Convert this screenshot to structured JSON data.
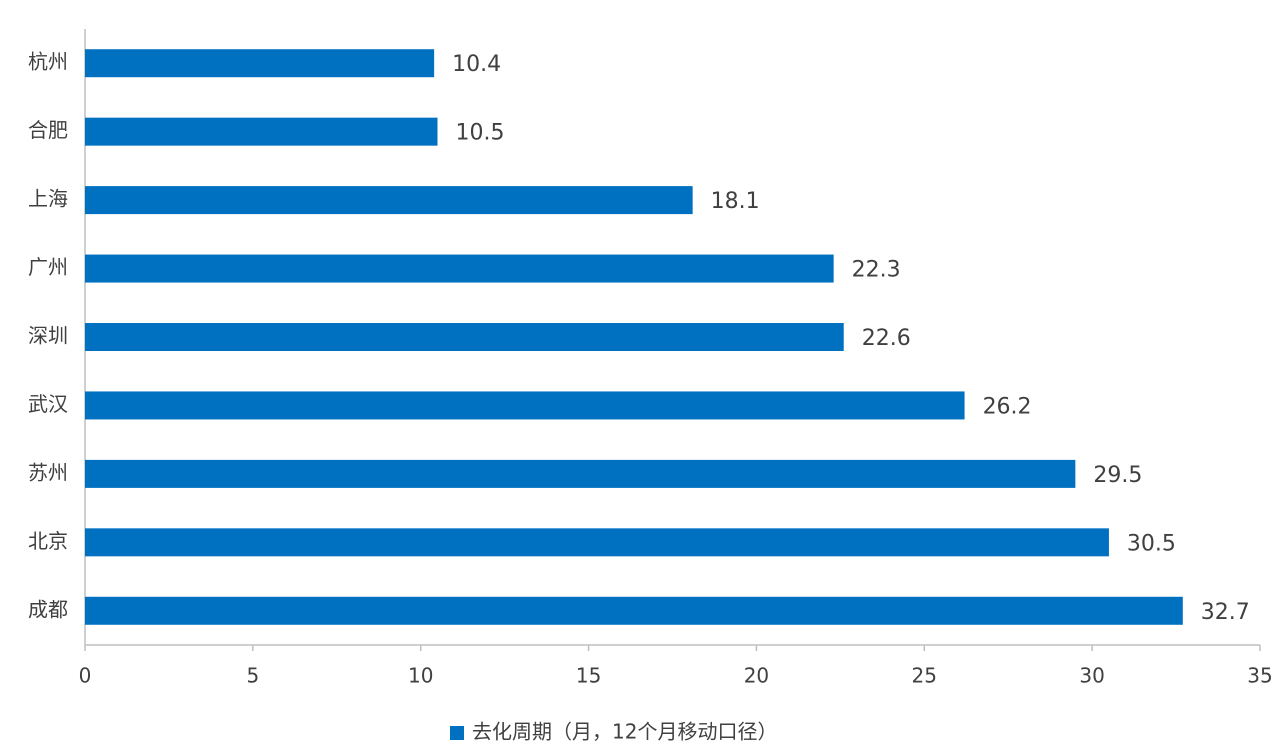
{
  "chart_data": {
    "type": "barh",
    "categories": [
      "杭州",
      "合肥",
      "上海",
      "广州",
      "深圳",
      "武汉",
      "苏州",
      "北京",
      "成都"
    ],
    "series": [
      {
        "name": "去化周期（月，12个月移动口径）",
        "color": "#0070c0",
        "values": [
          10.4,
          10.5,
          18.1,
          22.3,
          22.6,
          26.2,
          29.5,
          30.5,
          32.7
        ]
      }
    ],
    "xlim": [
      0,
      35
    ],
    "xticks": [
      0,
      5,
      10,
      15,
      20,
      25,
      30,
      35
    ],
    "legend": "bottom",
    "grid": false
  }
}
